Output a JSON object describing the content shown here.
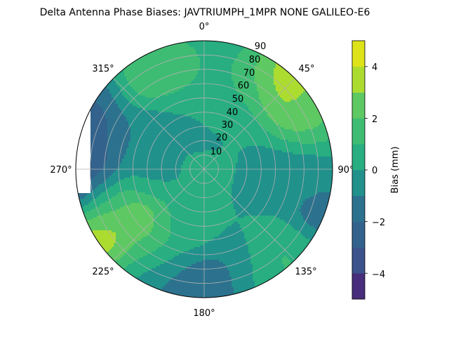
{
  "chart_data": {
    "type": "polar-contour",
    "title": "Delta Antenna Phase Biases: JAVTRIUMPH_1MPR NONE GALILEO-E6",
    "theta_zero": "N",
    "theta_direction": "clockwise",
    "theta_ticks": [
      "0°",
      "45°",
      "90°",
      "135°",
      "180°",
      "225°",
      "270°",
      "315°"
    ],
    "radial_ticks": [
      "10",
      "20",
      "30",
      "40",
      "50",
      "60",
      "70",
      "80",
      "90"
    ],
    "radial_range": [
      0,
      90
    ],
    "grid": true,
    "colorbar": {
      "label": "Bias (mm)",
      "ticks": [
        "−4",
        "−2",
        "0",
        "2",
        "4"
      ],
      "range": [
        -5,
        5
      ],
      "levels": [
        -5,
        -4,
        -3,
        -2,
        -1,
        0,
        1,
        2,
        3,
        4,
        5
      ],
      "colormap": "viridis",
      "colors": [
        "#472d7b",
        "#3b528b",
        "#33638d",
        "#2c728e",
        "#21918c",
        "#28ae80",
        "#3fbc73",
        "#5ec962",
        "#addc30",
        "#dde318"
      ]
    },
    "features": [
      {
        "az": 40,
        "el": 85,
        "bias": 4.6
      },
      {
        "az": 52,
        "el": 80,
        "bias": 3.6
      },
      {
        "az": 62,
        "el": 82,
        "bias": 2.4
      },
      {
        "az": 30,
        "el": 72,
        "bias": 1.6
      },
      {
        "az": 345,
        "el": 75,
        "bias": 1.6
      },
      {
        "az": 322,
        "el": 78,
        "bias": 2.2
      },
      {
        "az": 0,
        "el": 86,
        "bias": 1.0
      },
      {
        "az": 15,
        "el": 45,
        "bias": 0.6
      },
      {
        "az": 95,
        "el": 70,
        "bias": -0.4
      },
      {
        "az": 110,
        "el": 84,
        "bias": -1.9
      },
      {
        "az": 100,
        "el": 50,
        "bias": -0.4
      },
      {
        "az": 135,
        "el": 80,
        "bias": 1.2
      },
      {
        "az": 148,
        "el": 86,
        "bias": 1.4
      },
      {
        "az": 160,
        "el": 78,
        "bias": -1.2
      },
      {
        "az": 180,
        "el": 84,
        "bias": -2.2
      },
      {
        "az": 200,
        "el": 82,
        "bias": -1.6
      },
      {
        "az": 230,
        "el": 58,
        "bias": 3.4
      },
      {
        "az": 238,
        "el": 86,
        "bias": 4.6
      },
      {
        "az": 250,
        "el": 75,
        "bias": 1.6
      },
      {
        "az": 212,
        "el": 70,
        "bias": 1.4
      },
      {
        "az": 262,
        "el": 88,
        "bias": -3.2
      },
      {
        "az": 275,
        "el": 88,
        "bias": -3.8
      },
      {
        "az": 290,
        "el": 88,
        "bias": -3.6
      },
      {
        "az": 305,
        "el": 88,
        "bias": -2.2
      },
      {
        "az": 285,
        "el": 76,
        "bias": -1.8
      },
      {
        "az": 300,
        "el": 55,
        "bias": -1.0
      },
      {
        "az": 270,
        "el": 35,
        "bias": -0.2
      },
      {
        "az": 0,
        "el": 25,
        "bias": -0.3
      },
      {
        "az": 200,
        "el": 40,
        "bias": 0.5
      },
      {
        "az": 0,
        "el": 5,
        "bias": 0.2
      }
    ]
  }
}
